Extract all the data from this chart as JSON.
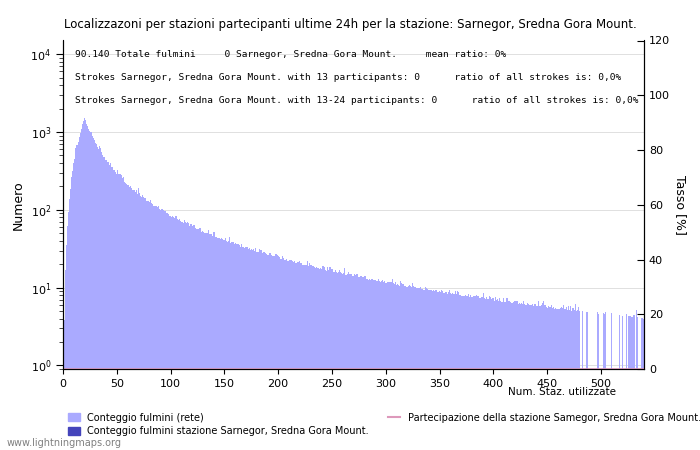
{
  "title": "Localizzazoni per stazioni partecipanti ultime 24h per la stazione: Sarnegor, Sredna Gora Mount.",
  "annotation_line1": "90.140 Totale fulmini     0 Sarnegor, Sredna Gora Mount.     mean ratio: 0%",
  "annotation_line2": "Strokes Sarnegor, Sredna Gora Mount. with 13 participants: 0      ratio of all strokes is: 0,0%",
  "annotation_line3": "Strokes Sarnegor, Sredna Gora Mount. with 13-24 participants: 0      ratio of all strokes is: 0,0%",
  "ylabel_left": "Numero",
  "ylabel_right": "Tasso [%]",
  "xlabel": "Num. Staz. utilizzate",
  "ylim_right": [
    0,
    120
  ],
  "xlim": [
    0,
    540
  ],
  "xticks": [
    0,
    50,
    100,
    150,
    200,
    250,
    300,
    350,
    400,
    450,
    500
  ],
  "yticks_right": [
    0,
    20,
    40,
    60,
    80,
    100,
    120
  ],
  "bar_color_light": "#aaaaff",
  "bar_color_dark": "#4444bb",
  "line_color": "#dd99bb",
  "watermark": "www.lightningmaps.org",
  "legend_label1": "Conteggio fulmini (rete)",
  "legend_label2": "Conteggio fulmini stazione Sarnegor, Sredna Gora Mount.",
  "legend_label3": "Partecipazione della stazione Samegor, Sredna Gora Mount. %"
}
